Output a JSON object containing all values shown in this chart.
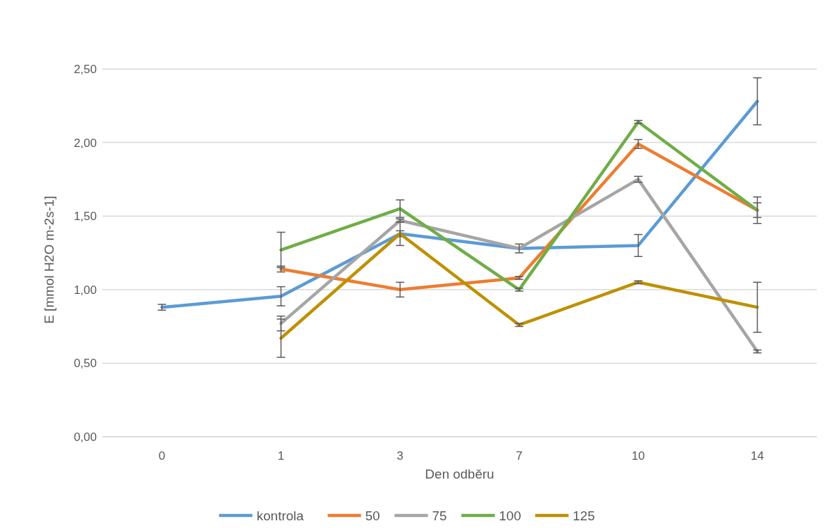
{
  "chart_data": {
    "type": "line",
    "xlabel": "Den odběru",
    "ylabel": "E [mmol H2O m-2s-1]",
    "categories": [
      "0",
      "1",
      "3",
      "7",
      "10",
      "14"
    ],
    "ylim": [
      0,
      2.5
    ],
    "yticks": [
      {
        "value": 0,
        "label": "0,00"
      },
      {
        "value": 0.5,
        "label": "0,50"
      },
      {
        "value": 1,
        "label": "1,00"
      },
      {
        "value": 1.5,
        "label": "1,50"
      },
      {
        "value": 2,
        "label": "2,00"
      },
      {
        "value": 2.5,
        "label": "2,50"
      }
    ],
    "grid": "y",
    "legend": "bottom",
    "marker": "none",
    "line_style": "solid",
    "series": [
      {
        "name": "kontrola",
        "color": "#5b9bd5",
        "values": [
          0.88,
          0.955,
          1.38,
          1.28,
          1.3,
          2.28
        ],
        "errors": [
          0.02,
          0.065,
          0.02,
          null,
          0.075,
          0.16
        ]
      },
      {
        "name": "50",
        "color": "#ed7d31",
        "values": [
          null,
          1.14,
          1.0,
          1.08,
          1.99,
          1.54
        ],
        "errors": [
          null,
          0.02,
          0.05,
          0.01,
          0.03,
          0.09
        ]
      },
      {
        "name": "75",
        "color": "#a5a5a5",
        "values": [
          null,
          0.77,
          1.47,
          1.28,
          1.75,
          0.58
        ],
        "errors": [
          null,
          0.05,
          0.01,
          0.03,
          0.02,
          0.01
        ]
      },
      {
        "name": "100",
        "color": "#70ad47",
        "values": [
          null,
          1.27,
          1.55,
          1.0,
          2.14,
          1.54
        ],
        "errors": [
          null,
          0.12,
          0.06,
          0.01,
          0.01,
          0.05
        ]
      },
      {
        "name": "125",
        "color": "#bf9000",
        "values": [
          null,
          0.67,
          1.38,
          0.76,
          1.05,
          0.88
        ],
        "errors": [
          null,
          0.13,
          0.08,
          0.01,
          0.01,
          0.17
        ]
      }
    ]
  }
}
